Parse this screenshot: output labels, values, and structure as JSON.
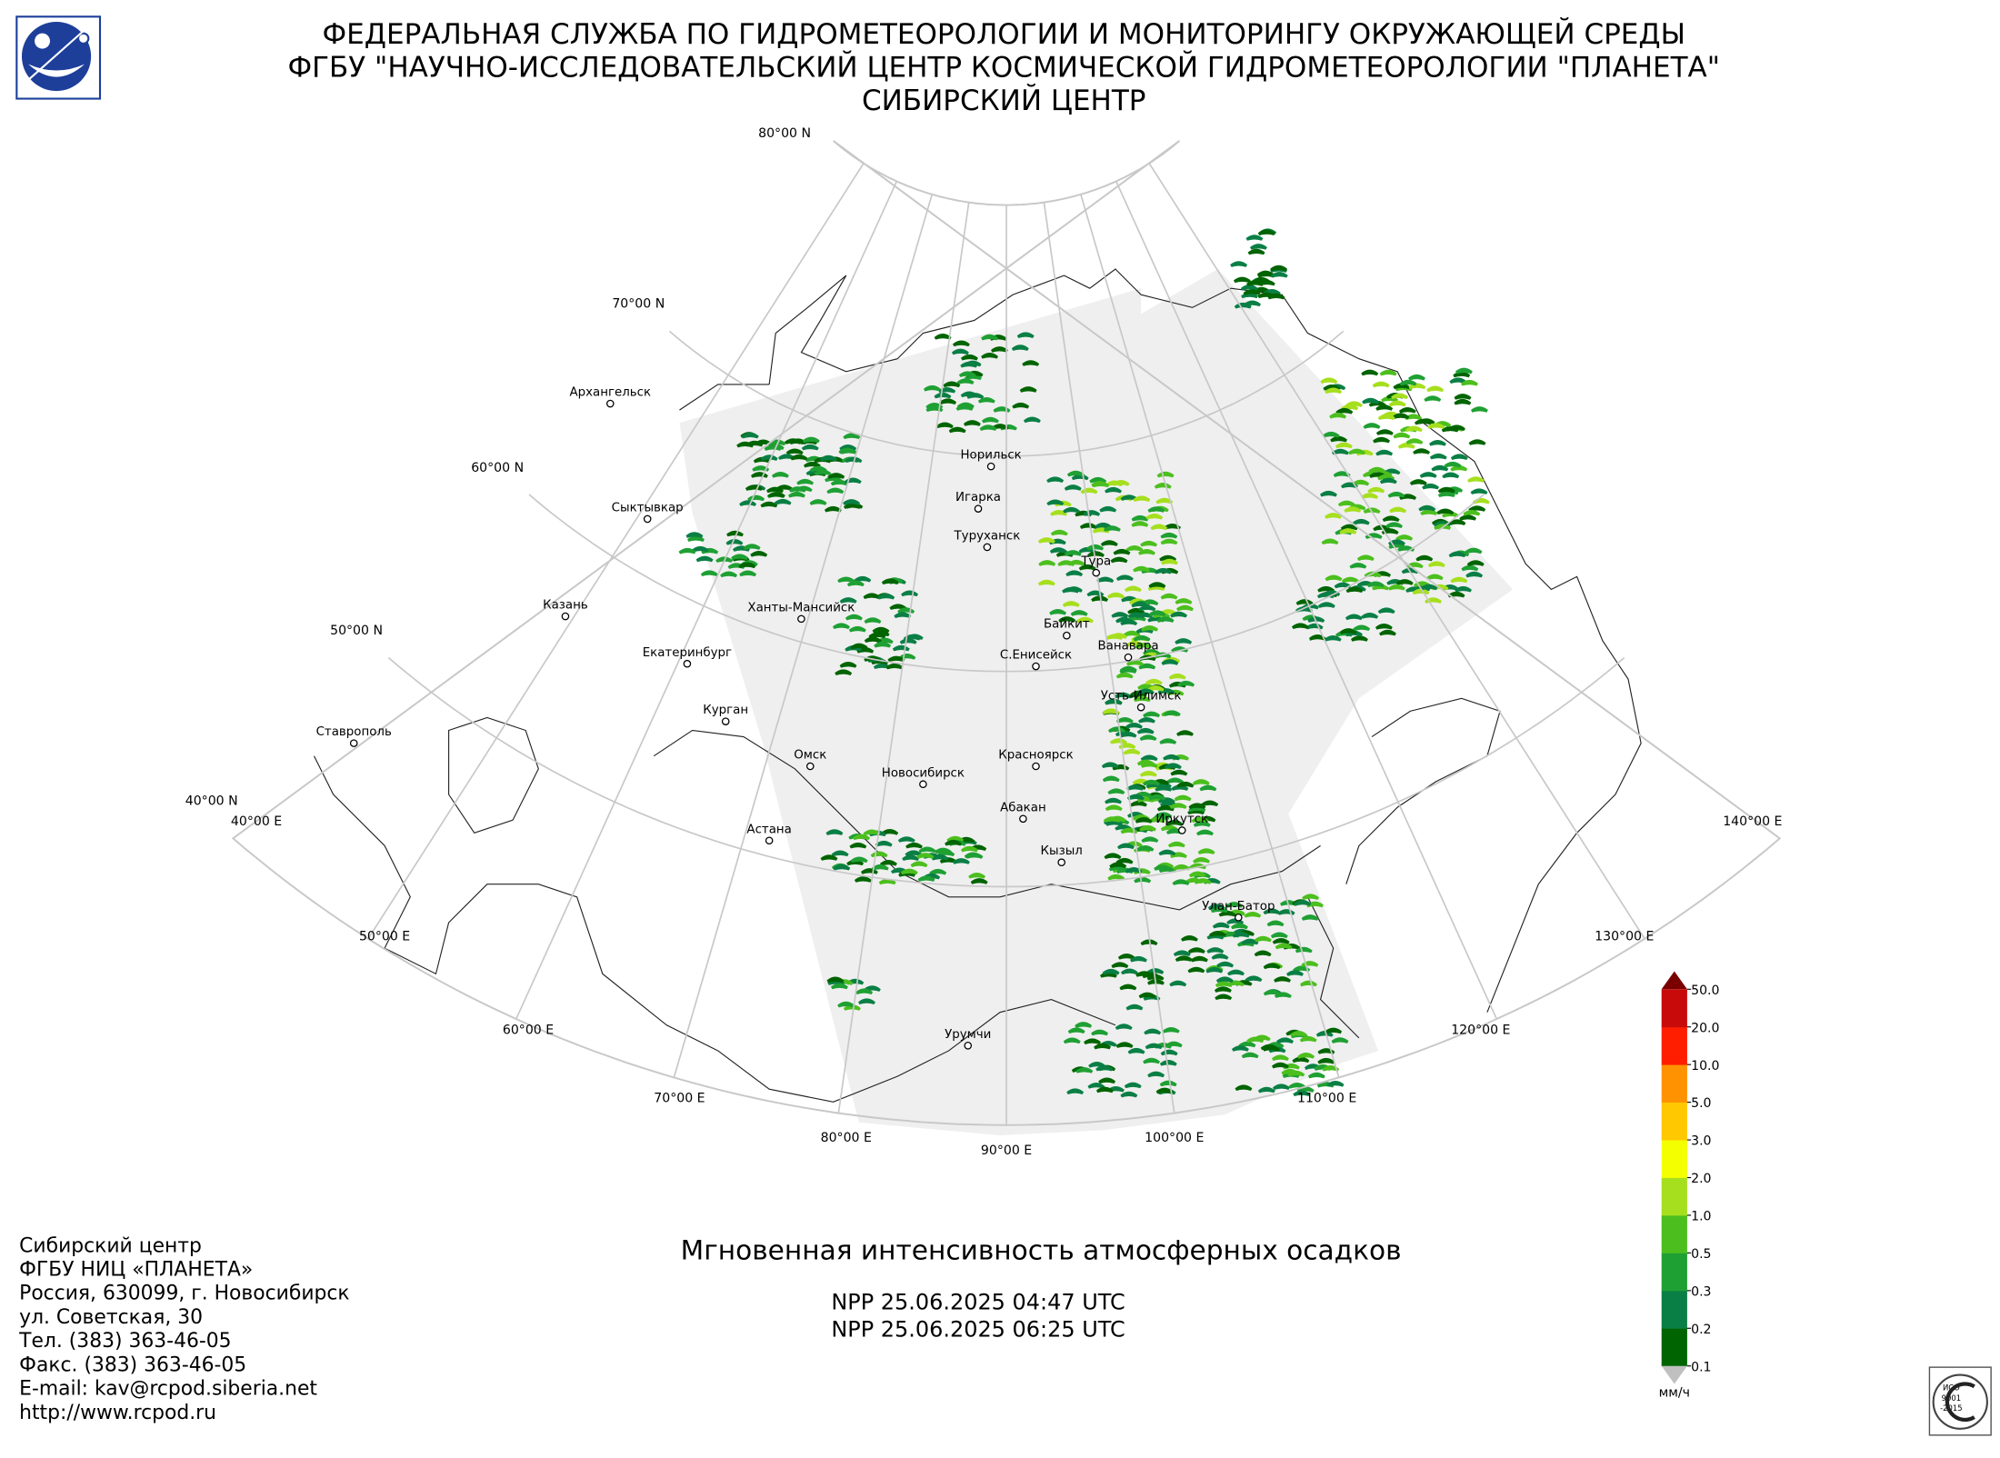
{
  "header": {
    "lines": [
      "ФЕДЕРАЛЬНАЯ СЛУЖБА ПО ГИДРОМЕТЕОРОЛОГИИ И МОНИТОРИНГУ ОКРУЖАЮЩЕЙ СРЕДЫ",
      "ФГБУ \"НАУЧНО-ИССЛЕДОВАТЕЛЬСКИЙ ЦЕНТР КОСМИЧЕСКОЙ ГИДРОМЕТЕОРОЛОГИИ \"ПЛАНЕТА\"",
      "СИБИРСКИЙ ЦЕНТР"
    ]
  },
  "map": {
    "lat_labels": [
      "80°00 N",
      "70°00 N",
      "60°00 N",
      "50°00 N",
      "40°00 N"
    ],
    "lon_labels": [
      "40°00 E",
      "50°00 E",
      "60°00 E",
      "70°00 E",
      "80°00 E",
      "90°00 E",
      "100°00 E",
      "110°00 E",
      "120°00 E",
      "130°00 E",
      "140°00 E"
    ],
    "cities": [
      "Архангельск",
      "Сыктывкар",
      "Казань",
      "Екатеринбург",
      "Курган",
      "Ставрополь",
      "Ханты-Мансийск",
      "Омск",
      "Астана",
      "Новосибирск",
      "Норильск",
      "Игарка",
      "Туруханск",
      "Тура",
      "Байкит",
      "С.Енисейск",
      "Ванавара",
      "Усть-Илимск",
      "Красноярск",
      "Абакан",
      "Иркутск",
      "Кызыл",
      "Улан-Батор",
      "Урумчи"
    ]
  },
  "product": {
    "title": "Мгновенная интенсивность атмосферных осадков",
    "passes": [
      "NPP 25.06.2025  04:47 UTC",
      "NPP 25.06.2025  06:25 UTC"
    ]
  },
  "legend": {
    "unit": "мм/ч",
    "labels": [
      "0.1",
      "0.2",
      "0.3",
      "0.5",
      "1.0",
      "2.0",
      "3.0",
      "5.0",
      "10.0",
      "20.0",
      "50.0"
    ],
    "colors": [
      "#006400",
      "#0a7f45",
      "#1fa033",
      "#4cbf1e",
      "#a6df1e",
      "#f4ff00",
      "#ffc800",
      "#ff9200",
      "#ff1e00",
      "#c80a0a"
    ],
    "under_color": "#c0c0c0",
    "over_color": "#7a0000"
  },
  "address": [
    "Сибирский центр",
    "ФГБУ НИЦ «ПЛАНЕТА»",
    "Россия, 630099, г. Новосибирск",
    "ул. Советская, 30",
    "Тел. (383) 363-46-05",
    "Факс. (383) 363-46-05",
    "E-mail: kav@rcpod.siberia.net",
    "http://www.rcpod.ru"
  ],
  "iso_badge": [
    "ИСО",
    "9001",
    "-2015"
  ]
}
